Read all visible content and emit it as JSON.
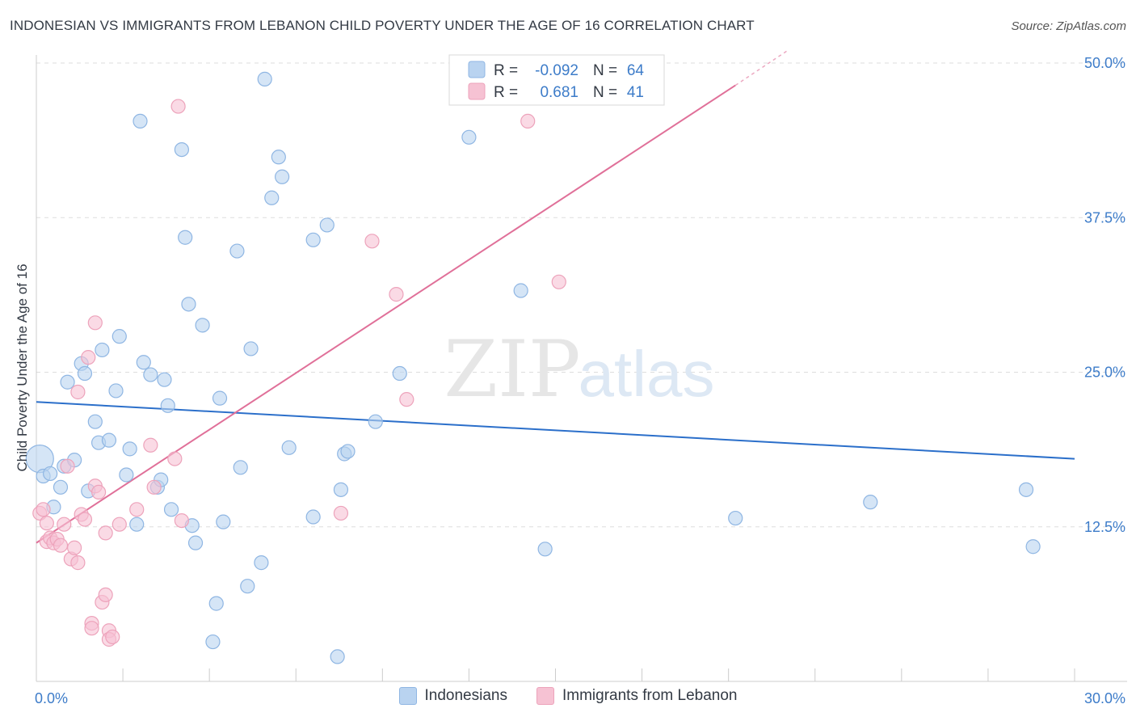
{
  "header": {
    "title": "INDONESIAN VS IMMIGRANTS FROM LEBANON CHILD POVERTY UNDER THE AGE OF 16 CORRELATION CHART",
    "source": "Source: ZipAtlas.com"
  },
  "watermark": {
    "zip": "ZIP",
    "atlas": "atlas"
  },
  "colors": {
    "blue_fill": "#b9d3f0",
    "blue_stroke": "#8fb6e3",
    "blue_line": "#2b6fca",
    "pink_fill": "#f6c2d3",
    "pink_stroke": "#eda3bb",
    "pink_line": "#e07099",
    "axis_text": "#3d7cc9",
    "grid": "#dddddd"
  },
  "chart_data": {
    "type": "scatter",
    "title": "INDONESIAN VS IMMIGRANTS FROM LEBANON CHILD POVERTY UNDER THE AGE OF 16 CORRELATION CHART",
    "xlabel": "",
    "ylabel": "Child Poverty Under the Age of 16",
    "xlim": [
      0,
      30
    ],
    "ylim": [
      0,
      50
    ],
    "x_tick_labels": [
      "0.0%",
      "30.0%"
    ],
    "y_ticks": [
      12.5,
      25.0,
      37.5,
      50.0
    ],
    "y_tick_labels": [
      "12.5%",
      "25.0%",
      "37.5%",
      "50.0%"
    ],
    "legend_stats": [
      {
        "r_label": "R =",
        "r_value": "-0.092",
        "n_label": "N =",
        "n_value": "64"
      },
      {
        "r_label": "R =",
        "r_value": "0.681",
        "n_label": "N =",
        "n_value": "41"
      }
    ],
    "series": [
      {
        "name": "Indonesians",
        "trend": {
          "x": [
            0,
            30
          ],
          "y": [
            22.6,
            18.0
          ]
        },
        "points": [
          [
            0.1,
            18.0
          ],
          [
            0.2,
            16.6
          ],
          [
            0.4,
            16.8
          ],
          [
            0.5,
            14.1
          ],
          [
            0.7,
            15.7
          ],
          [
            0.8,
            17.4
          ],
          [
            0.9,
            24.2
          ],
          [
            1.1,
            17.9
          ],
          [
            1.3,
            25.7
          ],
          [
            1.4,
            24.9
          ],
          [
            1.5,
            15.4
          ],
          [
            1.7,
            21.0
          ],
          [
            1.8,
            19.3
          ],
          [
            1.9,
            26.8
          ],
          [
            2.1,
            19.5
          ],
          [
            2.3,
            23.5
          ],
          [
            2.4,
            27.9
          ],
          [
            2.6,
            16.7
          ],
          [
            2.7,
            18.8
          ],
          [
            2.9,
            12.7
          ],
          [
            3.0,
            45.3
          ],
          [
            3.1,
            25.8
          ],
          [
            3.3,
            24.8
          ],
          [
            3.5,
            15.7
          ],
          [
            3.6,
            16.3
          ],
          [
            3.7,
            24.4
          ],
          [
            3.8,
            22.3
          ],
          [
            3.9,
            13.9
          ],
          [
            4.2,
            43.0
          ],
          [
            4.3,
            35.9
          ],
          [
            4.4,
            30.5
          ],
          [
            4.5,
            12.6
          ],
          [
            4.6,
            11.2
          ],
          [
            4.8,
            28.8
          ],
          [
            5.1,
            3.2
          ],
          [
            5.2,
            6.3
          ],
          [
            5.3,
            22.9
          ],
          [
            5.4,
            12.9
          ],
          [
            5.8,
            34.8
          ],
          [
            5.9,
            17.3
          ],
          [
            6.1,
            7.7
          ],
          [
            6.2,
            26.9
          ],
          [
            6.5,
            9.6
          ],
          [
            6.6,
            48.7
          ],
          [
            6.8,
            39.1
          ],
          [
            7.0,
            42.4
          ],
          [
            7.1,
            40.8
          ],
          [
            7.3,
            18.9
          ],
          [
            8.0,
            35.7
          ],
          [
            8.0,
            13.3
          ],
          [
            8.4,
            36.9
          ],
          [
            8.7,
            2.0
          ],
          [
            8.8,
            15.5
          ],
          [
            8.9,
            18.4
          ],
          [
            9.0,
            18.6
          ],
          [
            9.8,
            21.0
          ],
          [
            10.5,
            24.9
          ],
          [
            12.5,
            44.0
          ],
          [
            14.0,
            31.6
          ],
          [
            14.7,
            10.7
          ],
          [
            20.2,
            13.2
          ],
          [
            24.1,
            14.5
          ],
          [
            28.6,
            15.5
          ],
          [
            28.8,
            10.9
          ]
        ]
      },
      {
        "name": "Immigrants from Lebanon",
        "trend": {
          "x": [
            0,
            20.2
          ],
          "y": [
            11.2,
            48.2
          ]
        },
        "trend_dashed": {
          "x": [
            20.2,
            21.7
          ],
          "y": [
            48.2,
            51.0
          ]
        },
        "points": [
          [
            0.1,
            13.6
          ],
          [
            0.2,
            13.9
          ],
          [
            0.3,
            12.8
          ],
          [
            0.3,
            11.3
          ],
          [
            0.4,
            11.6
          ],
          [
            0.5,
            11.2
          ],
          [
            0.6,
            11.5
          ],
          [
            0.7,
            11.0
          ],
          [
            0.8,
            12.7
          ],
          [
            0.9,
            17.4
          ],
          [
            1.0,
            9.9
          ],
          [
            1.1,
            10.8
          ],
          [
            1.2,
            9.6
          ],
          [
            1.2,
            23.4
          ],
          [
            1.3,
            13.5
          ],
          [
            1.4,
            13.1
          ],
          [
            1.5,
            26.2
          ],
          [
            1.6,
            4.7
          ],
          [
            1.6,
            4.3
          ],
          [
            1.7,
            15.8
          ],
          [
            1.7,
            29.0
          ],
          [
            1.8,
            15.3
          ],
          [
            1.9,
            6.4
          ],
          [
            2.0,
            12.0
          ],
          [
            2.0,
            7.0
          ],
          [
            2.1,
            4.1
          ],
          [
            2.1,
            3.4
          ],
          [
            2.2,
            3.6
          ],
          [
            2.9,
            13.9
          ],
          [
            3.3,
            19.1
          ],
          [
            3.4,
            15.7
          ],
          [
            4.0,
            18.0
          ],
          [
            4.1,
            46.5
          ],
          [
            4.2,
            13.0
          ],
          [
            9.7,
            35.6
          ],
          [
            10.4,
            31.3
          ],
          [
            10.7,
            22.8
          ],
          [
            14.2,
            45.3
          ],
          [
            15.1,
            32.3
          ],
          [
            8.8,
            13.6
          ],
          [
            2.4,
            12.7
          ]
        ]
      }
    ]
  }
}
